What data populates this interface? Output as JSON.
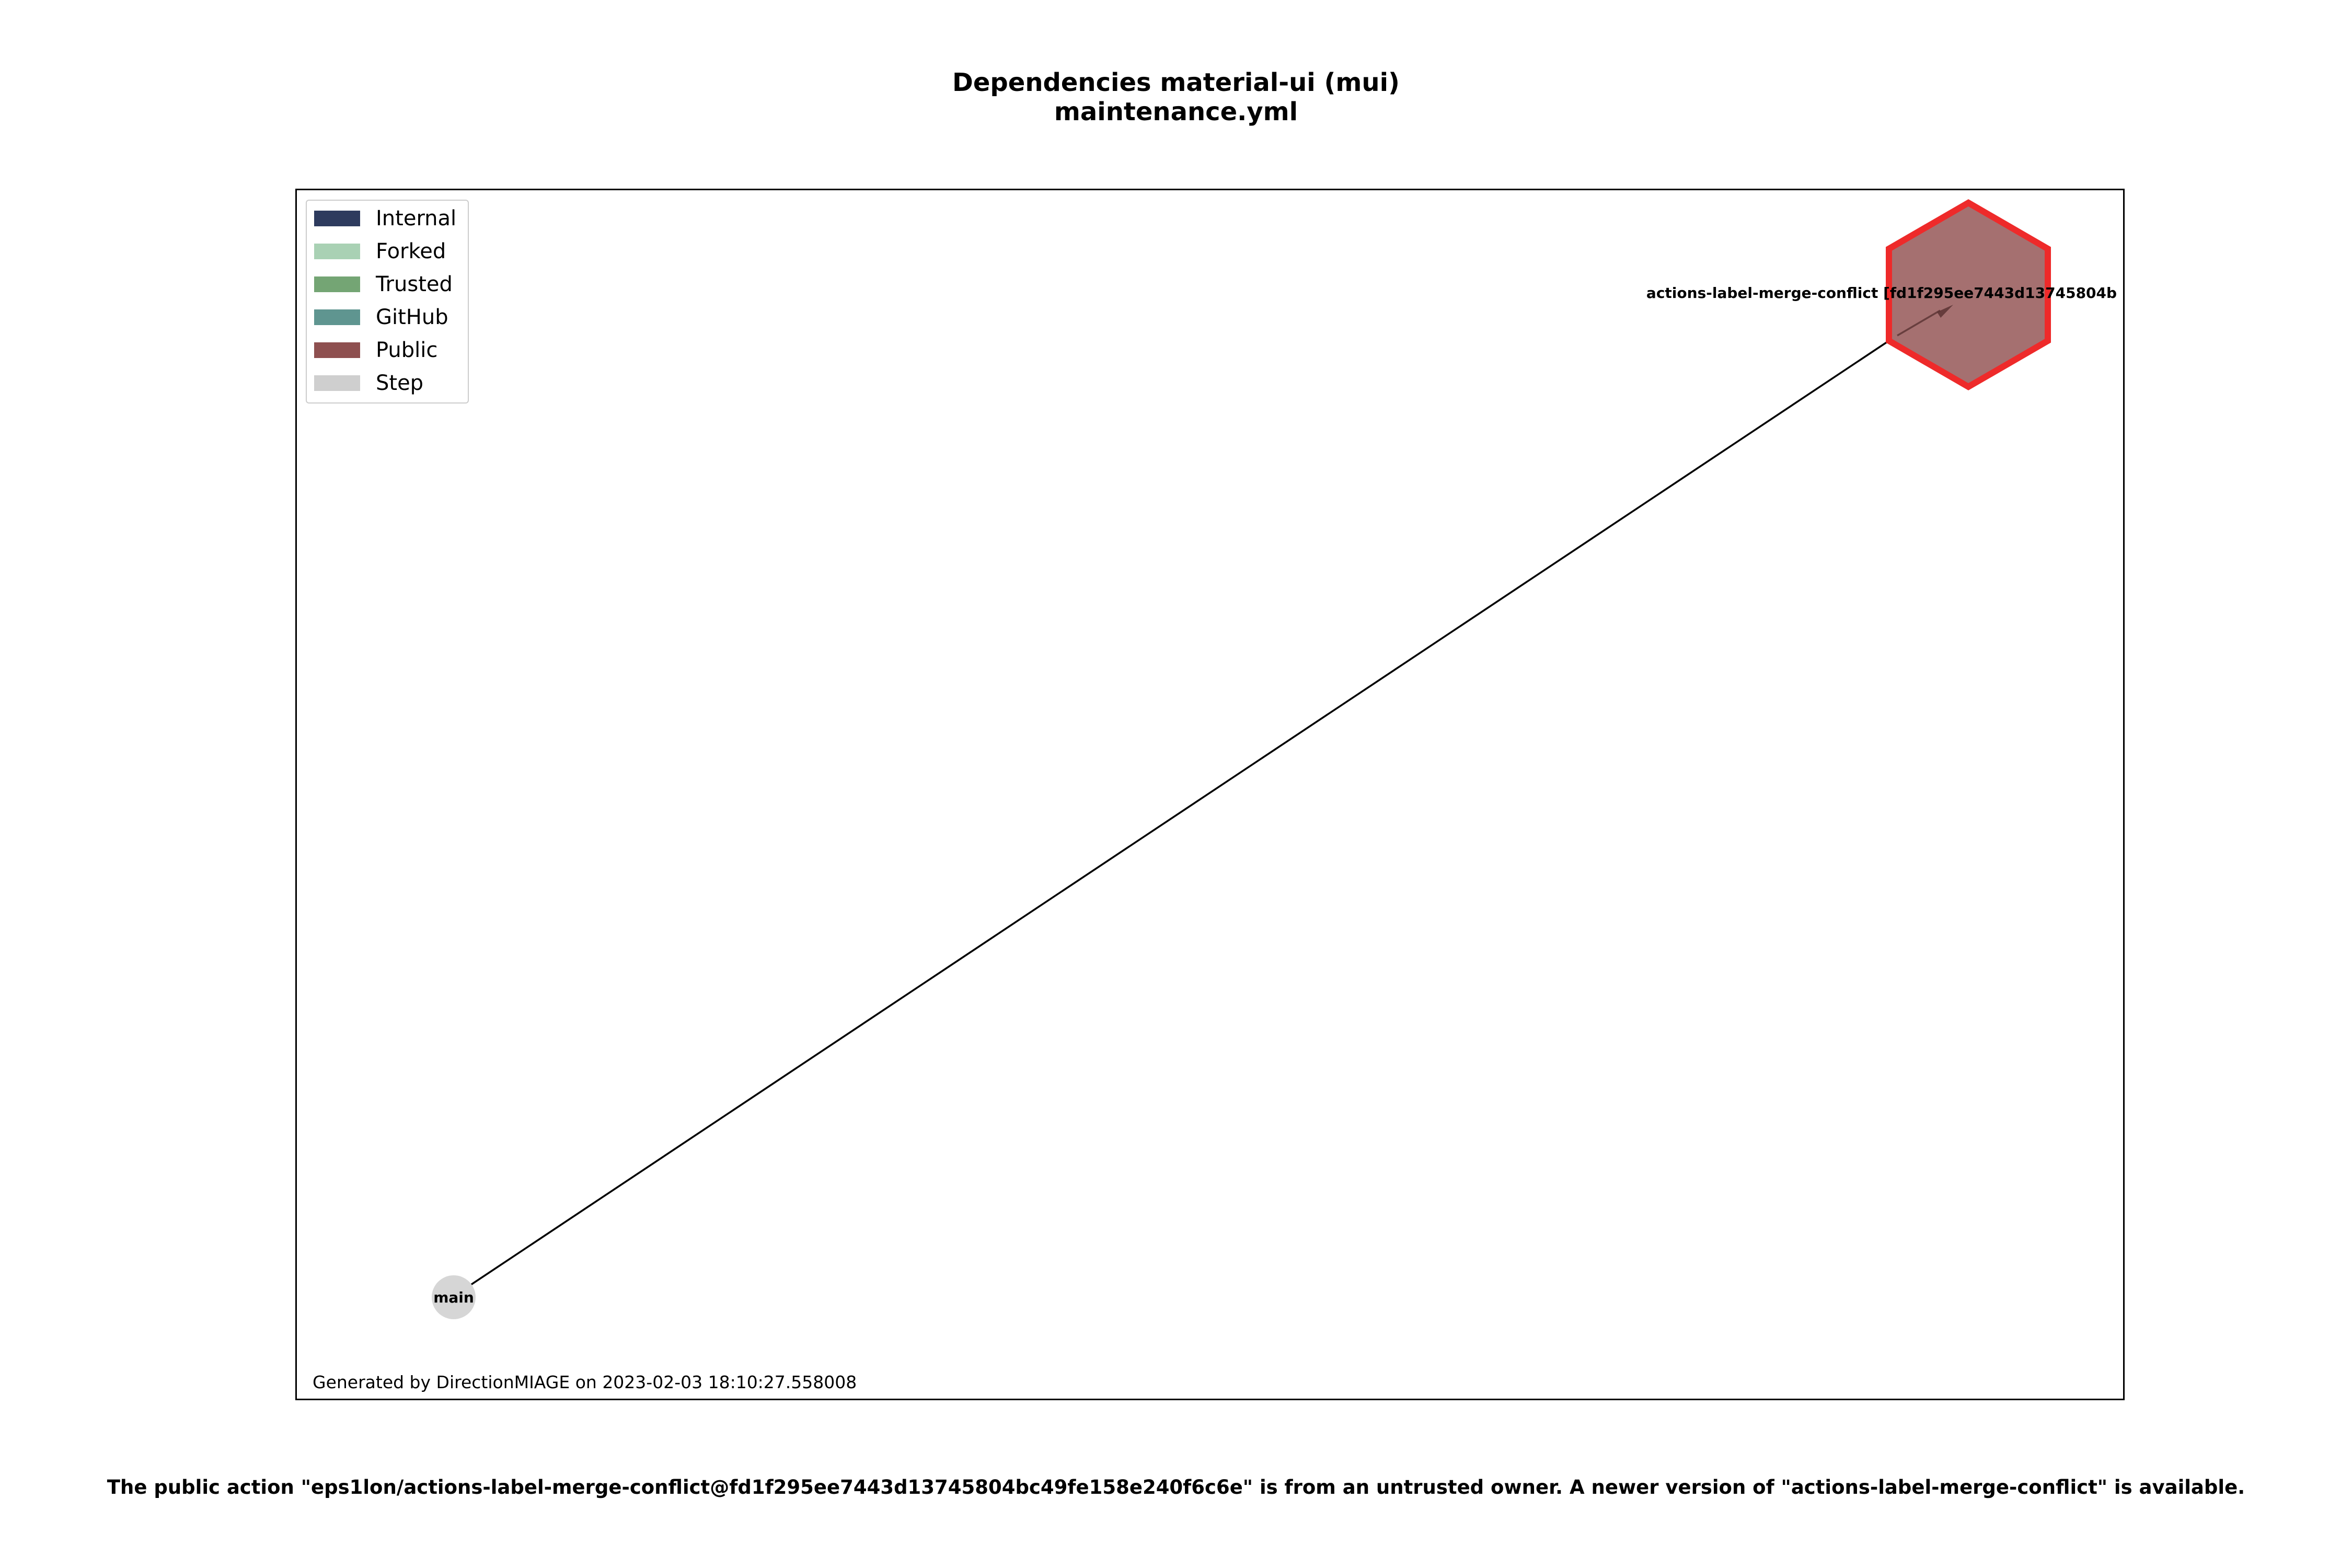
{
  "title": {
    "line1": "Dependencies material-ui (mui)",
    "line2": "maintenance.yml"
  },
  "legend": [
    {
      "label": "Internal",
      "color": "#2e3b5e"
    },
    {
      "label": "Forked",
      "color": "#a9d1b4"
    },
    {
      "label": "Trusted",
      "color": "#74a574"
    },
    {
      "label": "GitHub",
      "color": "#5f9590"
    },
    {
      "label": "Public",
      "color": "#8e5050"
    },
    {
      "label": "Step",
      "color": "#cfcfcf"
    }
  ],
  "nodes": {
    "step": {
      "label": "main",
      "color": "#d6d6d6",
      "type": "Step"
    },
    "action": {
      "label": "actions-label-merge-conflict [fd1f295ee7443d13745804b",
      "color": "#a57070",
      "border_color": "#ee2a2a",
      "type": "Public"
    }
  },
  "footer_note": "Generated by DirectionMIAGE on 2023-02-03 18:10:27.558008",
  "warning": "The public action \"eps1lon/actions-label-merge-conflict@fd1f295ee7443d13745804bc49fe158e240f6c6e\" is from an untrusted owner. A newer version of \"actions-label-merge-conflict\" is available."
}
